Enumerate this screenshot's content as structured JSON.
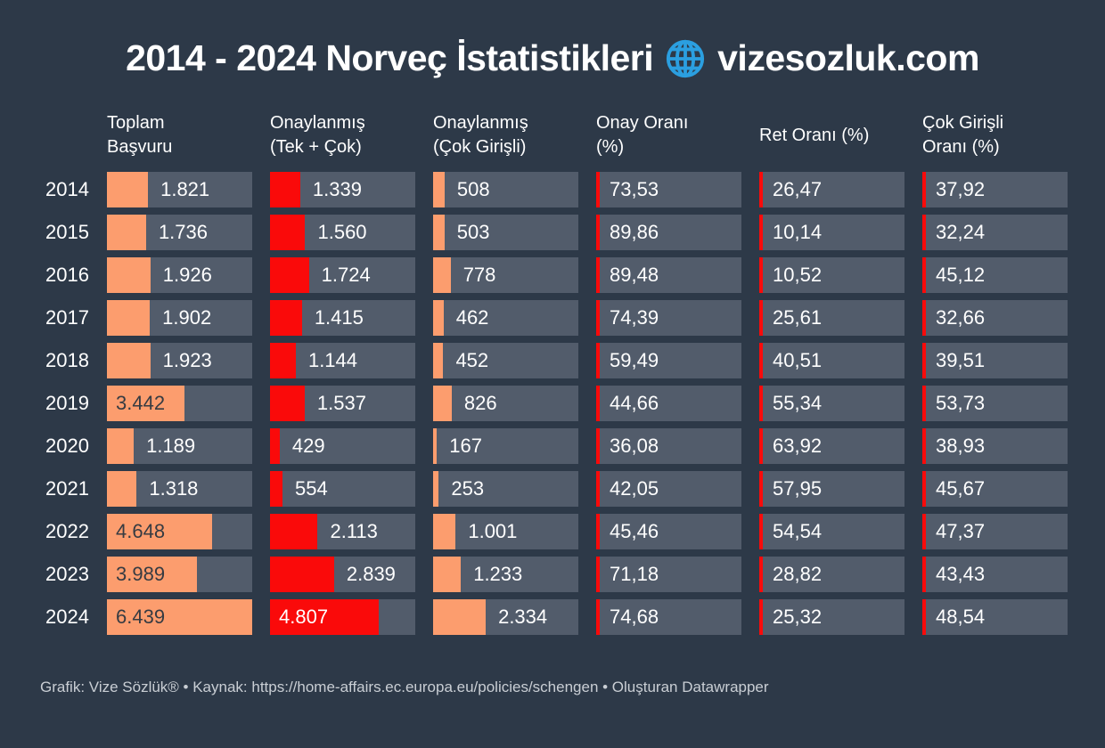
{
  "title": {
    "text": "2014 - 2024 Norveç İstatistikleri",
    "site": "vizesozluk.com",
    "icon": "globe-icon"
  },
  "footer": {
    "text": "Grafik: Vize Sözlük® • Kaynak: https://home-affairs.ec.europa.eu/policies/schengen • Oluşturan Datawrapper"
  },
  "colors": {
    "background": "#2d3948",
    "track": "#525c6b",
    "orange": "#fc9d6e",
    "red": "#fa0a0a",
    "accent_blue": "#2b9fe0",
    "light_text": "#ffffff",
    "dark_text": "#363b42",
    "footer_text": "#c9ced4"
  },
  "chart_data": {
    "type": "table",
    "title": "2014 - 2024 Norveç İstatistikleri",
    "legend_position": "none",
    "grid": false,
    "bar_scale_max": 6439,
    "columns": [
      {
        "label": "Toplam Başvuru",
        "line1": "Toplam",
        "line2": "Başvuru",
        "kind": "bar",
        "color": "orange"
      },
      {
        "label": "Onaylanmış (Tek + Çok)",
        "line1": "Onaylanmış",
        "line2": "(Tek + Çok)",
        "kind": "bar",
        "color": "red"
      },
      {
        "label": "Onaylanmış (Çok Girişli)",
        "line1": "Onaylanmış",
        "line2": "(Çok Girişli)",
        "kind": "bar",
        "color": "orange"
      },
      {
        "label": "Onay Oranı (%)",
        "line1": "Onay Oranı",
        "line2": "(%)",
        "kind": "percent"
      },
      {
        "label": "Ret Oranı (%)",
        "line1": "Ret Oranı (%)",
        "line2": "",
        "kind": "percent"
      },
      {
        "label": "Çok Girişli Oranı (%)",
        "line1": "Çok Girişli",
        "line2": "Oranı (%)",
        "kind": "percent"
      }
    ],
    "rows": [
      {
        "year": "2014",
        "cells": [
          {
            "label": "1.821",
            "v": 1821
          },
          {
            "label": "1.339",
            "v": 1339
          },
          {
            "label": "508",
            "v": 508
          },
          {
            "label": "73,53",
            "v": 73.53
          },
          {
            "label": "26,47",
            "v": 26.47
          },
          {
            "label": "37,92",
            "v": 37.92
          }
        ]
      },
      {
        "year": "2015",
        "cells": [
          {
            "label": "1.736",
            "v": 1736
          },
          {
            "label": "1.560",
            "v": 1560
          },
          {
            "label": "503",
            "v": 503
          },
          {
            "label": "89,86",
            "v": 89.86
          },
          {
            "label": "10,14",
            "v": 10.14
          },
          {
            "label": "32,24",
            "v": 32.24
          }
        ]
      },
      {
        "year": "2016",
        "cells": [
          {
            "label": "1.926",
            "v": 1926
          },
          {
            "label": "1.724",
            "v": 1724
          },
          {
            "label": "778",
            "v": 778
          },
          {
            "label": "89,48",
            "v": 89.48
          },
          {
            "label": "10,52",
            "v": 10.52
          },
          {
            "label": "45,12",
            "v": 45.12
          }
        ]
      },
      {
        "year": "2017",
        "cells": [
          {
            "label": "1.902",
            "v": 1902
          },
          {
            "label": "1.415",
            "v": 1415
          },
          {
            "label": "462",
            "v": 462
          },
          {
            "label": "74,39",
            "v": 74.39
          },
          {
            "label": "25,61",
            "v": 25.61
          },
          {
            "label": "32,66",
            "v": 32.66
          }
        ]
      },
      {
        "year": "2018",
        "cells": [
          {
            "label": "1.923",
            "v": 1923
          },
          {
            "label": "1.144",
            "v": 1144
          },
          {
            "label": "452",
            "v": 452
          },
          {
            "label": "59,49",
            "v": 59.49
          },
          {
            "label": "40,51",
            "v": 40.51
          },
          {
            "label": "39,51",
            "v": 39.51
          }
        ]
      },
      {
        "year": "2019",
        "cells": [
          {
            "label": "3.442",
            "v": 3442
          },
          {
            "label": "1.537",
            "v": 1537
          },
          {
            "label": "826",
            "v": 826
          },
          {
            "label": "44,66",
            "v": 44.66
          },
          {
            "label": "55,34",
            "v": 55.34
          },
          {
            "label": "53,73",
            "v": 53.73
          }
        ]
      },
      {
        "year": "2020",
        "cells": [
          {
            "label": "1.189",
            "v": 1189
          },
          {
            "label": "429",
            "v": 429
          },
          {
            "label": "167",
            "v": 167
          },
          {
            "label": "36,08",
            "v": 36.08
          },
          {
            "label": "63,92",
            "v": 63.92
          },
          {
            "label": "38,93",
            "v": 38.93
          }
        ]
      },
      {
        "year": "2021",
        "cells": [
          {
            "label": "1.318",
            "v": 1318
          },
          {
            "label": "554",
            "v": 554
          },
          {
            "label": "253",
            "v": 253
          },
          {
            "label": "42,05",
            "v": 42.05
          },
          {
            "label": "57,95",
            "v": 57.95
          },
          {
            "label": "45,67",
            "v": 45.67
          }
        ]
      },
      {
        "year": "2022",
        "cells": [
          {
            "label": "4.648",
            "v": 4648
          },
          {
            "label": "2.113",
            "v": 2113
          },
          {
            "label": "1.001",
            "v": 1001
          },
          {
            "label": "45,46",
            "v": 45.46
          },
          {
            "label": "54,54",
            "v": 54.54
          },
          {
            "label": "47,37",
            "v": 47.37
          }
        ]
      },
      {
        "year": "2023",
        "cells": [
          {
            "label": "3.989",
            "v": 3989
          },
          {
            "label": "2.839",
            "v": 2839
          },
          {
            "label": "1.233",
            "v": 1233
          },
          {
            "label": "71,18",
            "v": 71.18
          },
          {
            "label": "28,82",
            "v": 28.82
          },
          {
            "label": "43,43",
            "v": 43.43
          }
        ]
      },
      {
        "year": "2024",
        "cells": [
          {
            "label": "6.439",
            "v": 6439
          },
          {
            "label": "4.807",
            "v": 4807
          },
          {
            "label": "2.334",
            "v": 2334
          },
          {
            "label": "74,68",
            "v": 74.68
          },
          {
            "label": "25,32",
            "v": 25.32
          },
          {
            "label": "48,54",
            "v": 48.54
          }
        ]
      }
    ]
  }
}
